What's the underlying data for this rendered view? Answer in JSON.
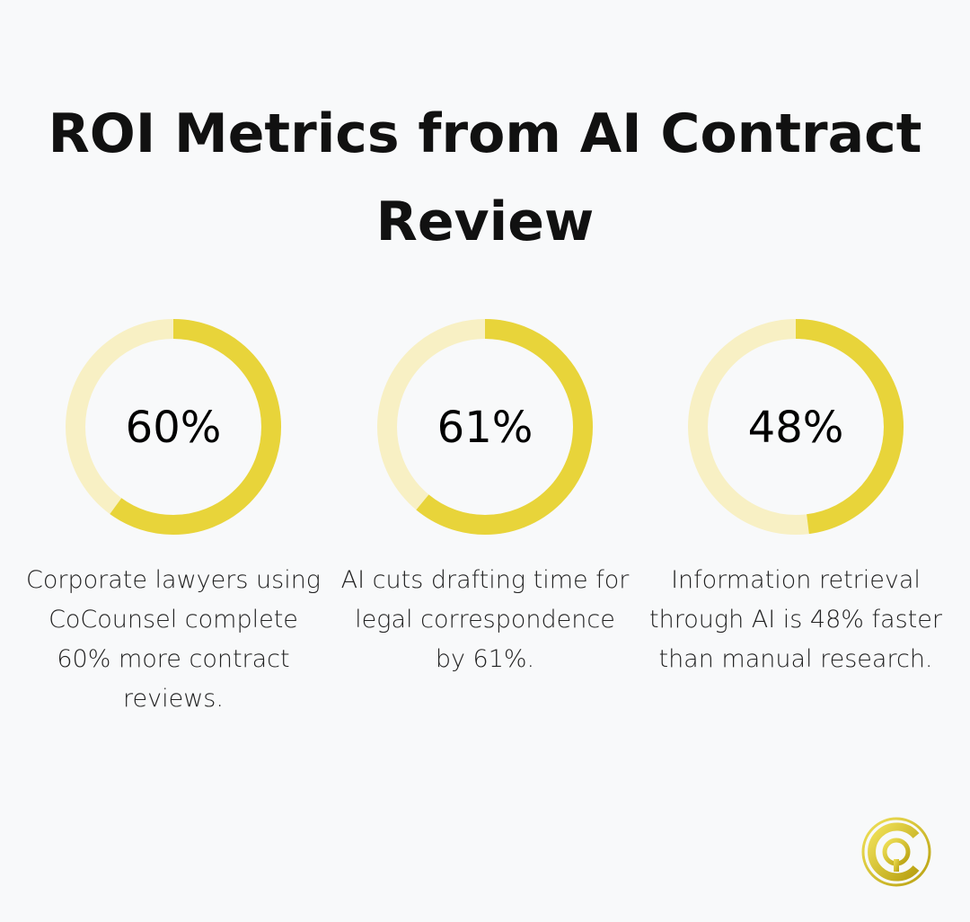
{
  "title": "ROI Metrics from AI Contract Review",
  "colors": {
    "accent": "#e8d43a",
    "track": "#f8f0c4",
    "background": "#f8f9fa"
  },
  "chart_data": {
    "type": "donut",
    "series": [
      {
        "value": 60,
        "label": "60%",
        "description": "Corporate lawyers using CoCounsel complete 60% more contract reviews."
      },
      {
        "value": 61,
        "label": "61%",
        "description": "AI cuts drafting time for legal correspondence by 61%."
      },
      {
        "value": 48,
        "label": "48%",
        "description": "Information retrieval through AI is 48% faster than manual research."
      }
    ],
    "max": 100
  },
  "logo": {
    "icon": "cq-logo-icon"
  }
}
